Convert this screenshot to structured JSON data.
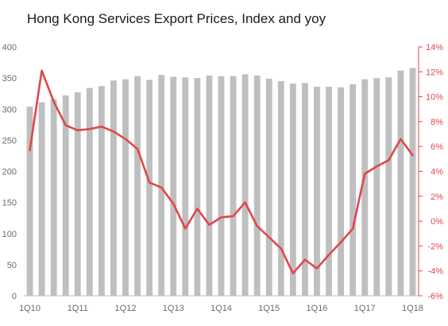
{
  "chart_data": {
    "type": "bar+line",
    "title": "Hong Kong Services Export Prices, Index and yoy",
    "categories": [
      "1Q10",
      "2Q10",
      "3Q10",
      "4Q10",
      "1Q11",
      "2Q11",
      "3Q11",
      "4Q11",
      "1Q12",
      "2Q12",
      "3Q12",
      "4Q12",
      "1Q13",
      "2Q13",
      "3Q13",
      "4Q13",
      "1Q14",
      "2Q14",
      "3Q14",
      "4Q14",
      "1Q15",
      "2Q15",
      "3Q15",
      "4Q15",
      "1Q16",
      "2Q16",
      "3Q16",
      "4Q16",
      "1Q17",
      "2Q17",
      "3Q17",
      "4Q17",
      "1Q18"
    ],
    "x_tick_labels": [
      "1Q10",
      "1Q11",
      "1Q12",
      "1Q13",
      "1Q14",
      "1Q15",
      "1Q16",
      "1Q17",
      "1Q18"
    ],
    "series": [
      {
        "type": "bar",
        "axis": "left",
        "color": "#bfbfbf",
        "values": [
          304,
          311,
          316,
          322,
          327,
          334,
          337,
          346,
          348,
          353,
          347,
          355,
          352,
          351,
          350,
          354,
          353,
          353,
          356,
          354,
          349,
          345,
          341,
          342,
          336,
          336,
          335,
          340,
          348,
          350,
          351,
          362,
          366
        ]
      },
      {
        "type": "line",
        "axis": "right",
        "color": "#e0474c",
        "values": [
          5.7,
          12.1,
          9.6,
          7.7,
          7.3,
          7.4,
          7.6,
          7.2,
          6.6,
          5.8,
          3.1,
          2.7,
          1.4,
          -0.6,
          1.0,
          -0.3,
          0.3,
          0.4,
          1.5,
          -0.4,
          -1.3,
          -2.2,
          -4.2,
          -3.1,
          -3.8,
          -2.7,
          -1.7,
          -0.6,
          3.8,
          4.4,
          4.9,
          6.6,
          5.3
        ]
      }
    ],
    "y_left": {
      "min": 0,
      "max": 400,
      "step": 50
    },
    "y_right": {
      "min": -6,
      "max": 14,
      "step": 2,
      "suffix": "%"
    },
    "grid": false,
    "legend": "none",
    "colors": {
      "left_axis_text": "#6b6b6b",
      "right_axis": "#e0474c",
      "bars": "#bfbfbf",
      "line": "#e0474c"
    }
  }
}
